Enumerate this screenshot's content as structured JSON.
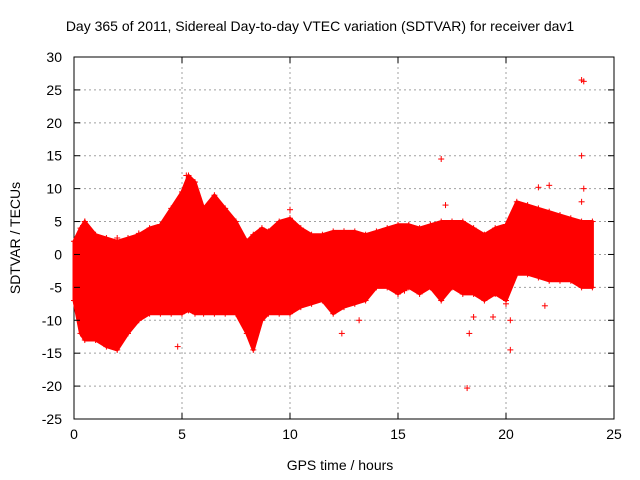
{
  "chart_data": {
    "type": "scatter",
    "title": "Day 365 of 2011, Sidereal Day-to-day VTEC variation (SDTVAR) for receiver dav1",
    "xlabel": "GPS time / hours",
    "ylabel": "SDTVAR / TECUs",
    "xlim": [
      0,
      25
    ],
    "ylim": [
      -25,
      30
    ],
    "x_ticks": [
      0,
      5,
      10,
      15,
      20,
      25
    ],
    "y_ticks": [
      -25,
      -20,
      -15,
      -10,
      -5,
      0,
      5,
      10,
      15,
      20,
      25,
      30
    ],
    "x_tick_labels": [
      "0",
      "5",
      "10",
      "15",
      "20",
      "25"
    ],
    "y_tick_labels": [
      "-25",
      "-20",
      "-15",
      "-10",
      "-5",
      "0",
      "5",
      "10",
      "15",
      "20",
      "25",
      "30"
    ],
    "grid": true,
    "marker": "plus",
    "series_color": "#ff0000",
    "envelope": {
      "x": [
        0.0,
        0.3,
        0.5,
        1.0,
        1.5,
        2.0,
        2.5,
        3.0,
        3.5,
        4.0,
        4.5,
        5.0,
        5.3,
        5.6,
        6.0,
        6.5,
        7.0,
        7.5,
        8.0,
        8.3,
        8.7,
        9.0,
        9.5,
        10.0,
        10.5,
        11.0,
        11.5,
        12.0,
        12.5,
        13.0,
        13.5,
        14.0,
        14.5,
        15.0,
        15.5,
        16.0,
        16.5,
        17.0,
        17.5,
        18.0,
        18.5,
        19.0,
        19.5,
        20.0,
        20.5,
        21.0,
        21.5,
        22.0,
        22.5,
        23.0,
        23.5,
        24.0
      ],
      "upper": [
        2.0,
        4.0,
        5.0,
        3.0,
        2.5,
        2.0,
        2.5,
        3.0,
        4.0,
        4.5,
        7.0,
        9.5,
        12.0,
        11.0,
        7.0,
        9.0,
        7.0,
        5.0,
        2.0,
        3.0,
        4.0,
        3.5,
        5.0,
        5.5,
        4.0,
        3.0,
        3.0,
        3.5,
        3.5,
        3.5,
        3.0,
        3.5,
        4.0,
        4.5,
        4.5,
        4.0,
        4.5,
        5.0,
        5.0,
        5.0,
        4.0,
        3.0,
        4.0,
        4.5,
        8.0,
        7.5,
        7.0,
        6.5,
        6.0,
        5.5,
        5.0,
        5.0
      ],
      "lower": [
        -7.0,
        -12.0,
        -13.0,
        -13.0,
        -14.0,
        -14.5,
        -12.0,
        -10.0,
        -9.0,
        -9.0,
        -9.0,
        -9.0,
        -8.5,
        -9.0,
        -9.0,
        -9.0,
        -9.0,
        -9.0,
        -12.0,
        -14.5,
        -10.0,
        -9.0,
        -9.0,
        -9.0,
        -8.0,
        -7.5,
        -7.0,
        -9.0,
        -8.0,
        -7.5,
        -7.0,
        -5.0,
        -5.0,
        -6.0,
        -5.0,
        -6.0,
        -5.0,
        -7.0,
        -5.0,
        -6.0,
        -6.0,
        -7.0,
        -6.0,
        -7.0,
        -3.0,
        -3.0,
        -3.5,
        -4.0,
        -4.0,
        -4.0,
        -5.0,
        -5.0
      ]
    },
    "outliers": [
      {
        "x": 0.5,
        "y": 5.0
      },
      {
        "x": 2.0,
        "y": 2.5
      },
      {
        "x": 3.0,
        "y": 3.2
      },
      {
        "x": 4.8,
        "y": -14.0
      },
      {
        "x": 5.0,
        "y": -8.5
      },
      {
        "x": 5.2,
        "y": 12.0
      },
      {
        "x": 10.0,
        "y": 6.8
      },
      {
        "x": 12.4,
        "y": -12.0
      },
      {
        "x": 12.5,
        "y": 3.5
      },
      {
        "x": 13.2,
        "y": -10.0
      },
      {
        "x": 15.3,
        "y": -5.5
      },
      {
        "x": 17.0,
        "y": 14.5
      },
      {
        "x": 17.2,
        "y": 7.5
      },
      {
        "x": 18.2,
        "y": -20.3
      },
      {
        "x": 18.3,
        "y": -12.0
      },
      {
        "x": 18.5,
        "y": -9.5
      },
      {
        "x": 19.4,
        "y": -9.5
      },
      {
        "x": 20.0,
        "y": -7.5
      },
      {
        "x": 20.2,
        "y": -10.0
      },
      {
        "x": 20.2,
        "y": -14.5
      },
      {
        "x": 21.5,
        "y": 10.2
      },
      {
        "x": 21.8,
        "y": -7.8
      },
      {
        "x": 22.0,
        "y": 10.5
      },
      {
        "x": 23.5,
        "y": 26.5
      },
      {
        "x": 23.6,
        "y": 26.3
      },
      {
        "x": 23.5,
        "y": 15.0
      },
      {
        "x": 23.6,
        "y": 10.0
      },
      {
        "x": 23.5,
        "y": 8.0
      }
    ]
  }
}
